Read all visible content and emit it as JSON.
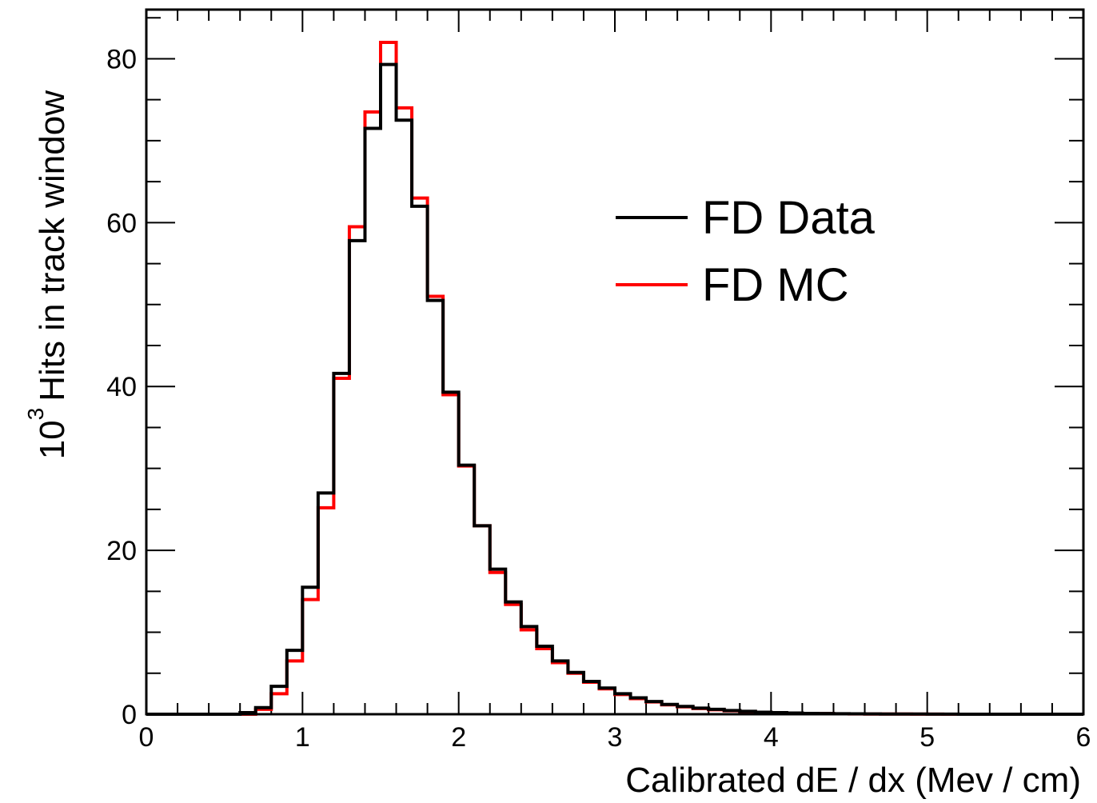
{
  "chart_data": {
    "type": "histogram",
    "xlabel": "Calibrated dE / dx (Mev / cm)",
    "ylabel_prefix": "10",
    "ylabel_exponent": "3",
    "ylabel": "Hits in track window",
    "xlim": [
      0,
      6
    ],
    "ylim": [
      0,
      86
    ],
    "xticks": [
      "0",
      "1",
      "2",
      "3",
      "4",
      "5",
      "6"
    ],
    "yticks": [
      "0",
      "20",
      "40",
      "60",
      "80"
    ],
    "bin_width": 0.1,
    "bin_start": 0,
    "legend": {
      "position": "right",
      "entries": [
        "FD Data",
        "FD MC"
      ]
    },
    "series": [
      {
        "name": "FD Data",
        "color": "#000000",
        "values": [
          0,
          0,
          0,
          0,
          0,
          0,
          0.2,
          0.8,
          3.4,
          7.8,
          15.5,
          27.0,
          41.6,
          57.8,
          71.5,
          79.3,
          72.5,
          62.0,
          50.5,
          39.3,
          30.4,
          23.0,
          17.7,
          13.7,
          10.7,
          8.3,
          6.5,
          5.1,
          4.0,
          3.2,
          2.5,
          2.0,
          1.55,
          1.2,
          0.95,
          0.75,
          0.6,
          0.45,
          0.35,
          0.25,
          0.2,
          0.15,
          0.1,
          0.08,
          0.06,
          0.05,
          0.04,
          0.03,
          0.02,
          0.02,
          0.01,
          0.01,
          0,
          0,
          0,
          0,
          0,
          0,
          0,
          0
        ]
      },
      {
        "name": "FD MC",
        "color": "#ff0000",
        "values": [
          0,
          0,
          0,
          0,
          0,
          0,
          0,
          0.6,
          2.5,
          6.5,
          14.0,
          25.2,
          41.0,
          59.5,
          73.5,
          82.0,
          74.0,
          63.0,
          51.0,
          39.0,
          30.3,
          23.0,
          17.3,
          13.4,
          10.3,
          8.0,
          6.3,
          5.0,
          3.9,
          3.1,
          2.4,
          1.9,
          1.5,
          1.15,
          0.9,
          0.7,
          0.55,
          0.42,
          0.32,
          0.24,
          0.18,
          0.13,
          0.09,
          0.07,
          0.05,
          0.04,
          0.03,
          0.02,
          0.02,
          0.01,
          0.01,
          0,
          0,
          0,
          0,
          0,
          0,
          0,
          0,
          0
        ]
      }
    ]
  }
}
